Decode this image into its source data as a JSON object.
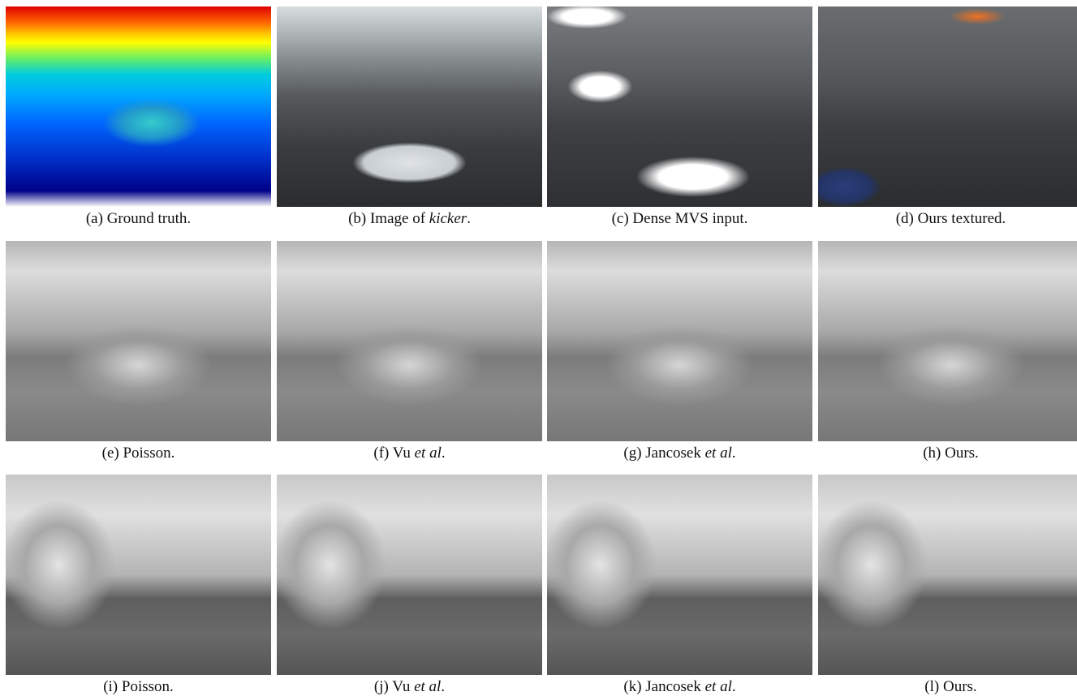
{
  "figure": {
    "panels": [
      {
        "caption": [
          {
            "text": "(a) Ground truth."
          }
        ]
      },
      {
        "caption": [
          {
            "text": "(b) Image of "
          },
          {
            "text": "kicker",
            "italic": true
          },
          {
            "text": "."
          }
        ]
      },
      {
        "caption": [
          {
            "text": "(c) Dense MVS input."
          }
        ]
      },
      {
        "caption": [
          {
            "text": "(d) Ours textured."
          }
        ]
      },
      {
        "caption": [
          {
            "text": "(e) Poisson."
          }
        ]
      },
      {
        "caption": [
          {
            "text": "(f) Vu "
          },
          {
            "text": "et al",
            "italic": true
          },
          {
            "text": "."
          }
        ]
      },
      {
        "caption": [
          {
            "text": "(g) Jancosek "
          },
          {
            "text": "et al",
            "italic": true
          },
          {
            "text": "."
          }
        ]
      },
      {
        "caption": [
          {
            "text": "(h) Ours."
          }
        ]
      },
      {
        "caption": [
          {
            "text": "(i) Poisson."
          }
        ]
      },
      {
        "caption": [
          {
            "text": "(j) Vu "
          },
          {
            "text": "et al",
            "italic": true
          },
          {
            "text": "."
          }
        ]
      },
      {
        "caption": [
          {
            "text": "(k) Jancosek "
          },
          {
            "text": "et al",
            "italic": true
          },
          {
            "text": "."
          }
        ]
      },
      {
        "caption": [
          {
            "text": "(l) Ours."
          }
        ]
      }
    ]
  }
}
